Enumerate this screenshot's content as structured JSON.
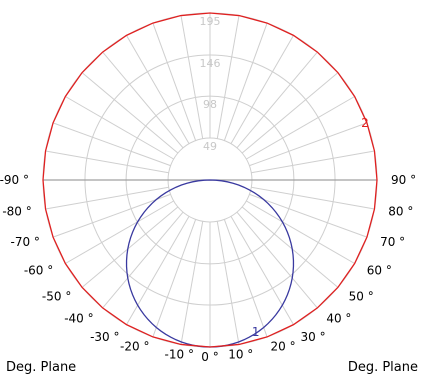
{
  "chart_data": {
    "type": "polar",
    "radial_ticks": [
      "49",
      "98",
      "146",
      "195"
    ],
    "radial_tick_values": [
      49,
      98,
      146,
      195
    ],
    "rmax": 195,
    "angle_step_deg": 10,
    "angle_tick_labels": [
      {
        "deg": -90,
        "label": "-90 °"
      },
      {
        "deg": -80,
        "label": "-80 °"
      },
      {
        "deg": -70,
        "label": "-70 °"
      },
      {
        "deg": -60,
        "label": "-60 °"
      },
      {
        "deg": -50,
        "label": "-50 °"
      },
      {
        "deg": -40,
        "label": "-40 °"
      },
      {
        "deg": -30,
        "label": "-30 °"
      },
      {
        "deg": -20,
        "label": "-20 °"
      },
      {
        "deg": -10,
        "label": "-10 °"
      },
      {
        "deg": 0,
        "label": "0 °"
      },
      {
        "deg": 10,
        "label": "10 °"
      },
      {
        "deg": 20,
        "label": "20 °"
      },
      {
        "deg": 30,
        "label": "30 °"
      },
      {
        "deg": 40,
        "label": "40 °"
      },
      {
        "deg": 50,
        "label": "50 °"
      },
      {
        "deg": 60,
        "label": "60 °"
      },
      {
        "deg": 70,
        "label": "70 °"
      },
      {
        "deg": 80,
        "label": "80 °"
      },
      {
        "deg": 90,
        "label": "90 °"
      }
    ],
    "corner_labels": {
      "left": "Deg. Plane",
      "right": "Deg. Plane"
    },
    "series": [
      {
        "name": "1",
        "color": "#3a3aa0",
        "shape": "cosine",
        "peak_value": 195,
        "angle_range_deg": [
          -90,
          90
        ]
      },
      {
        "name": "2",
        "color": "#e02020",
        "shape": "constant",
        "peak_value": 195,
        "angle_range_deg": [
          -90,
          90
        ]
      }
    ]
  }
}
